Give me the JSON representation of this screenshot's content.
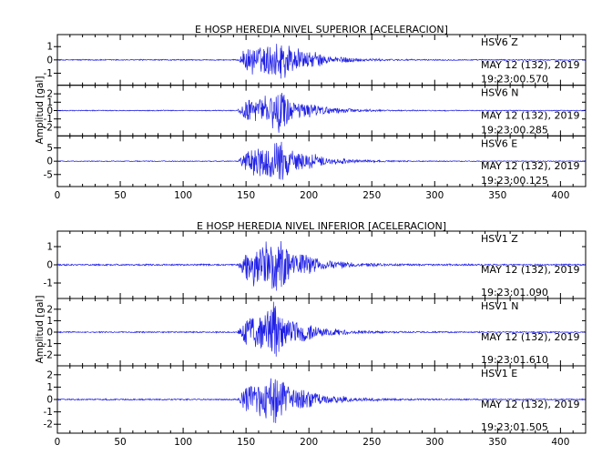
{
  "colors": {
    "trace": "#1f1fe6",
    "axis": "#000000",
    "background": "#ffffff"
  },
  "chart_data": [
    {
      "type": "line",
      "title": "E HOSP HEREDIA NIVEL SUPERIOR [ACELERACION]",
      "ylabel": "Amplitud [gal]",
      "xlim": [
        0,
        420
      ],
      "x_ticks": [
        0,
        50,
        100,
        150,
        200,
        250,
        300,
        350,
        400
      ],
      "traces": [
        {
          "station": "HSV6   Z",
          "date": "MAY 12 (132), 2019",
          "time": "19:23:00.570",
          "y_ticks": [
            1,
            0,
            -1
          ],
          "ylim": [
            -1.7,
            1.7
          ],
          "onset_s": 143,
          "peak_s": 180,
          "coda_end_s": 300,
          "max_amplitude": 1.5,
          "noise_amplitude": 0.04
        },
        {
          "station": "HSV6   N",
          "date": "MAY 12 (132), 2019",
          "time": "19:23:00.285",
          "y_ticks": [
            2,
            1,
            0,
            -1,
            -2
          ],
          "ylim": [
            -2.7,
            2.7
          ],
          "onset_s": 143,
          "peak_s": 178,
          "coda_end_s": 300,
          "max_amplitude": 2.2,
          "noise_amplitude": 0.05
        },
        {
          "station": "HSV6   E",
          "date": "MAY 12 (132), 2019",
          "time": "19:23:00.125",
          "y_ticks": [
            5,
            0,
            -5
          ],
          "ylim": [
            -8.5,
            8.5
          ],
          "onset_s": 143,
          "peak_s": 178,
          "coda_end_s": 300,
          "max_amplitude": 7.8,
          "noise_amplitude": 0.15
        }
      ]
    },
    {
      "type": "line",
      "title": "E HOSP HEREDIA NIVEL INFERIOR [ACELERACION]",
      "ylabel": "Amplitud [gal]",
      "xlim": [
        0,
        420
      ],
      "x_ticks": [
        0,
        50,
        100,
        150,
        200,
        250,
        300,
        350,
        400
      ],
      "traces": [
        {
          "station": "HSV1   Z",
          "date": "MAY 12 (132), 2019",
          "time": "19:23:01.090",
          "y_ticks": [
            1,
            0,
            -1
          ],
          "ylim": [
            -1.7,
            1.7
          ],
          "onset_s": 143,
          "peak_s": 175,
          "coda_end_s": 300,
          "max_amplitude": 1.5,
          "noise_amplitude": 0.04
        },
        {
          "station": "HSV1   N",
          "date": "MAY 12 (132), 2019",
          "time": "19:23:01.610",
          "y_ticks": [
            2,
            1,
            0,
            -1,
            -2
          ],
          "ylim": [
            -2.7,
            2.7
          ],
          "onset_s": 143,
          "peak_s": 173,
          "coda_end_s": 300,
          "max_amplitude": 2.3,
          "noise_amplitude": 0.05
        },
        {
          "station": "HSV1   E",
          "date": "MAY 12 (132), 2019",
          "time": "19:23:01.505",
          "y_ticks": [
            2,
            1,
            0,
            -1,
            -2
          ],
          "ylim": [
            -2.5,
            2.5
          ],
          "onset_s": 143,
          "peak_s": 174,
          "coda_end_s": 300,
          "max_amplitude": 2.1,
          "noise_amplitude": 0.05
        }
      ]
    }
  ]
}
